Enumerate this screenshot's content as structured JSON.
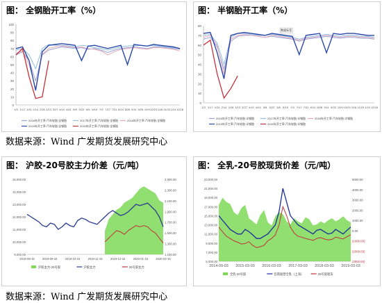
{
  "source_text": "数据来源：Wind 广发期货发展研究中心",
  "panels": [
    {
      "title": "图：  全钢胎开工率（%）"
    },
    {
      "title": "图：  半钢胎开工率（%）"
    },
    {
      "title": "图：  沪胶-20号胶主力价差（元/吨）"
    },
    {
      "title": "图：  全乳-20号胶现货价差（元/吨）"
    }
  ],
  "chart_data": [
    {
      "type": "line",
      "title": "全钢胎开工率（%）",
      "ylim": [
        0,
        100
      ],
      "yticks": [
        "100",
        "90",
        "80",
        "70",
        "60",
        "50",
        "40",
        "30",
        "20",
        "10",
        "0"
      ],
      "x_ticks": [
        "1/3",
        "1/17",
        "1/31",
        "2/14",
        "2/28",
        "3/13",
        "3/27",
        "4/10",
        "4/24",
        "5/8",
        "5/22",
        "6/5",
        "6/19",
        "7/3",
        "7/17",
        "7/31",
        "8/14",
        "8/28",
        "9/11",
        "9/25",
        "10/9",
        "10/23",
        "11/6",
        "11/20",
        "12/4",
        "12/18"
      ],
      "legend": [
        "2016年开工率:汽车轮胎:全钢胎",
        "2017年开工率:汽车轮胎:全钢胎",
        "2018年开工率:汽车轮胎:全钢胎",
        "2019年开工率:汽车轮胎:全钢胎",
        "2020年开工率:汽车轮胎:全钢胎"
      ],
      "colors": [
        "#9aa3d6",
        "#8fbde0",
        "#e8a7b8",
        "#2a48a8",
        "#c0313a"
      ],
      "series": [
        {
          "name": "2016年开工率:汽车轮胎:全钢胎",
          "values": [
            62,
            66,
            55,
            30,
            62,
            68,
            70,
            72,
            71,
            70,
            71,
            69,
            70,
            68,
            65,
            68,
            70,
            71,
            72,
            71,
            70,
            72,
            72,
            71,
            70,
            69
          ]
        },
        {
          "name": "2017年开工率:汽车轮胎:全钢胎",
          "values": [
            68,
            70,
            62,
            45,
            70,
            75,
            74,
            74,
            73,
            72,
            74,
            73,
            71,
            70,
            68,
            70,
            72,
            73,
            74,
            74,
            73,
            74,
            73,
            72,
            71,
            70
          ]
        },
        {
          "name": "2018年开工率:汽车轮胎:全钢胎",
          "values": [
            64,
            67,
            50,
            20,
            63,
            70,
            72,
            73,
            72,
            71,
            72,
            70,
            69,
            67,
            62,
            66,
            69,
            70,
            71,
            70,
            69,
            71,
            71,
            70,
            69,
            67
          ]
        },
        {
          "name": "2019年开工率:汽车轮胎:全钢胎",
          "values": [
            70,
            72,
            55,
            18,
            66,
            74,
            75,
            76,
            75,
            74,
            55,
            73,
            74,
            72,
            70,
            72,
            74,
            50,
            75,
            74,
            73,
            75,
            74,
            73,
            72,
            70
          ]
        },
        {
          "name": "2020年开工率:汽车轮胎:全钢胎",
          "values": [
            62,
            70,
            35,
            8,
            10,
            55
          ]
        }
      ]
    },
    {
      "type": "line",
      "title": "半钢胎开工率（%）",
      "ylim": [
        0,
        80
      ],
      "yticks": [
        "80",
        "70",
        "60",
        "50",
        "40",
        "30",
        "20",
        "10",
        "0"
      ],
      "x_ticks": [
        "1/3",
        "1/17",
        "1/31",
        "2/14",
        "2/28",
        "3/13",
        "3/27",
        "4/10",
        "4/24",
        "5/8",
        "5/22",
        "6/5",
        "6/19",
        "7/3",
        "7/17",
        "7/31",
        "8/14",
        "8/28",
        "9/11",
        "9/25",
        "10/9",
        "10/23",
        "11/6",
        "11/20",
        "12/4",
        "12/18"
      ],
      "legend": [
        "2016年开工率:汽车轮胎:半钢胎",
        "2017年开工率:汽车轮胎:半钢胎",
        "2018年开工率:汽车轮胎:半钢胎",
        "2019年开工率:汽车轮胎:半钢胎",
        "2020年开工率:汽车轮胎:半钢胎"
      ],
      "colors": [
        "#9aa3d6",
        "#8fbde0",
        "#e8a7b8",
        "#2a48a8",
        "#c0313a"
      ],
      "annotation": "数据标签",
      "series": [
        {
          "name": "2016年开工率:汽车轮胎:半钢胎",
          "values": [
            66,
            68,
            58,
            35,
            64,
            69,
            70,
            70,
            69,
            68,
            69,
            68,
            67,
            66,
            64,
            66,
            67,
            68,
            69,
            68,
            67,
            68,
            68,
            67,
            67,
            66
          ]
        },
        {
          "name": "2017年开工率:汽车轮胎:半钢胎",
          "values": [
            70,
            71,
            62,
            40,
            68,
            72,
            72,
            71,
            70,
            70,
            71,
            70,
            69,
            68,
            66,
            68,
            69,
            70,
            71,
            70,
            69,
            70,
            70,
            69,
            69,
            68
          ]
        },
        {
          "name": "2018年开工率:汽车轮胎:半钢胎",
          "values": [
            68,
            70,
            60,
            30,
            66,
            70,
            71,
            70,
            69,
            68,
            70,
            69,
            68,
            67,
            65,
            67,
            68,
            69,
            70,
            69,
            68,
            69,
            69,
            68,
            68,
            67
          ]
        },
        {
          "name": "2019年开工率:汽车轮胎:半钢胎",
          "values": [
            72,
            73,
            52,
            25,
            70,
            72,
            73,
            72,
            71,
            70,
            72,
            71,
            70,
            69,
            50,
            70,
            71,
            72,
            52,
            72,
            71,
            72,
            72,
            71,
            70,
            70
          ]
        },
        {
          "name": "2020年开工率:汽车轮胎:半钢胎",
          "values": [
            60,
            65,
            30,
            5,
            15,
            28
          ]
        }
      ]
    },
    {
      "type": "line",
      "title": "沪胶-20号胶主力价差（元/吨）",
      "y_left_ticks": [
        "15,000.00",
        "14,000.00",
        "13,000.00",
        "12,000.00",
        "11,000.00",
        "10,000.00",
        "9,000.00"
      ],
      "y_right_ticks": [
        "2,500.00",
        "2,300.00",
        "2,100.00",
        "1,900.00",
        "1,700.00",
        "1,500.00",
        "1,300.00",
        "1,100.00"
      ],
      "ylim_left": [
        9000,
        15000
      ],
      "ylim_right": [
        1000,
        2600
      ],
      "x_ticks": [
        "2019-08-15",
        "2019-09-15",
        "2019-10-15",
        "2019-11-15",
        "2019-12-15",
        "2020-01-15",
        "2020-02-15"
      ],
      "legend": [
        "沪胶主力-20号胶",
        "沪胶主力",
        "20号胶主力"
      ],
      "colors": [
        "#7ed957",
        "#2b3a8f",
        "#c0313a"
      ],
      "series": [
        {
          "name": "沪胶主力-20号胶",
          "axis": "right",
          "values": [
            null,
            null,
            null,
            null,
            null,
            null,
            null,
            null,
            null,
            null,
            null,
            null,
            null,
            null,
            null,
            null,
            null,
            null,
            null,
            null,
            1500,
            1750,
            1850,
            1950,
            2000,
            2100,
            2150,
            2200,
            2300,
            2400,
            2450,
            2400,
            2350,
            2300,
            2150,
            2100
          ]
        },
        {
          "name": "沪胶主力",
          "axis": "left",
          "values": [
            12200,
            12000,
            11800,
            11600,
            11300,
            11200,
            11500,
            11400,
            11000,
            11200,
            11500,
            11300,
            11200,
            11700,
            11900,
            11800,
            11600,
            11500,
            11400,
            11700,
            12000,
            12300,
            12500,
            12300,
            12100,
            12200,
            12400,
            12700,
            13000,
            12900,
            13000,
            13100,
            12800,
            12500,
            12000,
            11200
          ]
        },
        {
          "name": "20号胶主力",
          "axis": "left",
          "values": [
            null,
            null,
            null,
            null,
            null,
            null,
            null,
            null,
            null,
            null,
            null,
            null,
            null,
            null,
            null,
            null,
            null,
            null,
            null,
            null,
            10000,
            10300,
            10600,
            10900,
            10800,
            10600,
            10900,
            11100,
            11300,
            11200,
            11300,
            11200,
            10900,
            10700,
            10300,
            9900
          ]
        }
      ]
    },
    {
      "type": "line",
      "title": "全乳-20号胶现货价差（元/吨）",
      "y_left_ticks": [
        "23,000.00",
        "21,000.00",
        "19,000.00",
        "17,000.00",
        "15,000.00",
        "13,000.00",
        "11,000.00",
        "9,000.00",
        "7,000.00",
        "5,000.00"
      ],
      "y_right_ticks": [
        "5000.00",
        "4000.00",
        "3000.00",
        "2000.00",
        "1000.00",
        "0.00",
        "(1000.00)",
        "(2000.00)",
        "(3000.00)"
      ],
      "ylim_left": [
        5000,
        23000
      ],
      "ylim_right": [
        -3000,
        5000
      ],
      "x_ticks": [
        "2014-09-03",
        "2015-03-03",
        "2016-03-03",
        "2017-03-03",
        "2018-03-03",
        "2019-03-03"
      ],
      "legend": [
        "全乳-20号胶",
        "云南国营全乳（上海）",
        "20号胶现货"
      ],
      "colors": [
        "#7ed957",
        "#1c2d9a",
        "#c0313a"
      ],
      "series": [
        {
          "name": "全乳-20号胶",
          "axis": "right",
          "values": [
            2500,
            3200,
            2800,
            2600,
            1800,
            1500,
            2200,
            2500,
            1200,
            900,
            600,
            1500,
            2000,
            800,
            500,
            1400,
            1800,
            1600,
            900,
            600,
            1200,
            900,
            700,
            1300,
            1100,
            500,
            600,
            900,
            700,
            1000,
            1200,
            900,
            1100,
            1400,
            1000,
            800
          ]
        },
        {
          "name": "云南国营全乳（上海）",
          "axis": "left",
          "values": [
            15000,
            14000,
            13000,
            12000,
            11500,
            11000,
            11000,
            12000,
            11500,
            10800,
            10000,
            10000,
            10500,
            11000,
            12000,
            13000,
            16000,
            21000,
            18000,
            15000,
            14000,
            13000,
            12500,
            12000,
            11500,
            11000,
            11800,
            12000,
            11500,
            11000,
            11200,
            12000,
            11500,
            11000,
            11800,
            12500
          ]
        },
        {
          "name": "20号胶现货",
          "axis": "left",
          "values": [
            12500,
            11500,
            10500,
            10000,
            9500,
            9200,
            8800,
            8900,
            9300,
            8500,
            8000,
            8200,
            8500,
            9500,
            10000,
            10800,
            13000,
            17000,
            15000,
            12500,
            11200,
            10500,
            10300,
            10000,
            9800,
            9600,
            10000,
            10200,
            9900,
            9700,
            9800,
            10300,
            10100,
            9900,
            10400,
            10800
          ]
        }
      ]
    }
  ]
}
